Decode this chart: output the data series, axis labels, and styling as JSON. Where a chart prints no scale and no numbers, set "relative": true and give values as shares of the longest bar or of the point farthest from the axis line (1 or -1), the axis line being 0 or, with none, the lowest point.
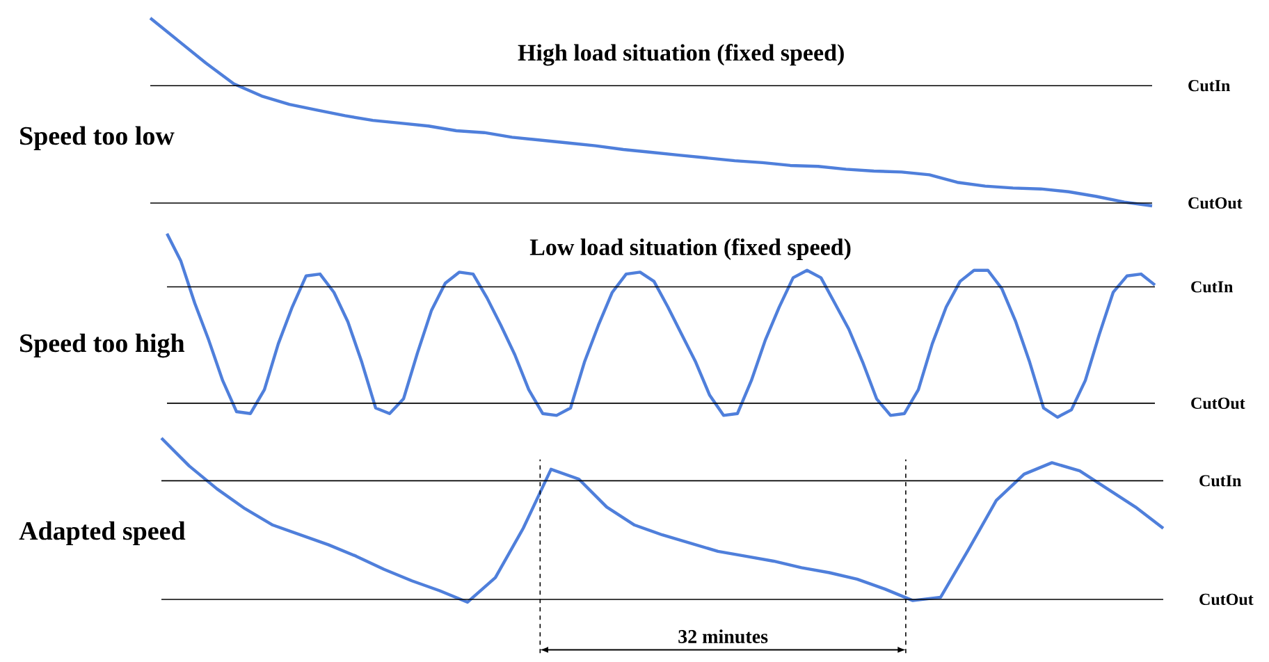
{
  "chart_data": [
    {
      "type": "line",
      "relative": true,
      "title": "High load situation (fixed speed)",
      "ylabel": "Speed too low",
      "categories": [
        null,
        null,
        null,
        null,
        null,
        null,
        null,
        null,
        null,
        null,
        null,
        null,
        null,
        null,
        null,
        null,
        null,
        null,
        null,
        null,
        null,
        null,
        null,
        null,
        null,
        null,
        null,
        null,
        null,
        null,
        null,
        null,
        null,
        null,
        null,
        null,
        null
      ],
      "series": [
        {
          "color": "#4f7fdb",
          "values": [
            1.0,
            0.88,
            0.76,
            0.65,
            0.585,
            0.54,
            0.51,
            0.48,
            0.455,
            0.44,
            0.425,
            0.4,
            0.39,
            0.365,
            0.35,
            0.335,
            0.32,
            0.3,
            0.285,
            0.27,
            0.255,
            0.24,
            0.23,
            0.215,
            0.21,
            0.195,
            0.185,
            0.18,
            0.165,
            0.125,
            0.105,
            0.095,
            0.09,
            0.075,
            0.05,
            0.02,
            0.0
          ]
        }
      ],
      "ref_lines": [
        {
          "axis": "y",
          "value": 0.64,
          "label": "CutIn"
        },
        {
          "axis": "y",
          "value": 0.015,
          "label": "CutOut"
        }
      ]
    },
    {
      "type": "line",
      "relative": true,
      "title": "Low load situation (fixed speed)",
      "ylabel": "Speed too high",
      "categories": [
        null,
        null,
        null,
        null,
        null,
        null,
        null,
        null,
        null,
        null,
        null,
        null,
        null,
        null,
        null,
        null,
        null,
        null,
        null,
        null,
        null,
        null,
        null,
        null,
        null,
        null,
        null,
        null,
        null,
        null,
        null,
        null,
        null,
        null,
        null,
        null,
        null,
        null,
        null,
        null,
        null,
        null,
        null,
        null,
        null,
        null,
        null,
        null,
        null,
        null,
        null,
        null,
        null,
        null,
        null,
        null,
        null,
        null,
        null,
        null,
        null,
        null,
        null,
        null,
        null,
        null,
        null,
        null,
        null,
        null,
        null,
        null
      ],
      "series": [
        {
          "color": "#4f7fdb",
          "values": [
            1.0,
            0.85,
            0.62,
            0.42,
            0.2,
            0.03,
            0.02,
            0.15,
            0.4,
            0.6,
            0.77,
            0.78,
            0.68,
            0.52,
            0.3,
            0.05,
            0.02,
            0.1,
            0.35,
            0.58,
            0.73,
            0.79,
            0.78,
            0.65,
            0.5,
            0.34,
            0.15,
            0.02,
            0.01,
            0.05,
            0.3,
            0.5,
            0.68,
            0.78,
            0.79,
            0.74,
            0.6,
            0.45,
            0.3,
            0.12,
            0.01,
            0.02,
            0.2,
            0.42,
            0.6,
            0.76,
            0.8,
            0.76,
            0.62,
            0.48,
            0.3,
            0.1,
            0.01,
            0.02,
            0.15,
            0.4,
            0.6,
            0.74,
            0.8,
            0.8,
            0.7,
            0.52,
            0.3,
            0.05,
            0.0,
            0.04,
            0.2,
            0.45,
            0.68,
            0.77,
            0.78,
            0.72
          ]
        }
      ],
      "ref_lines": [
        {
          "axis": "y",
          "value": 0.71,
          "label": "CutIn"
        },
        {
          "axis": "y",
          "value": 0.076,
          "label": "CutOut"
        }
      ]
    },
    {
      "type": "line",
      "relative": true,
      "ylabel": "Adapted speed",
      "annotations": [
        "32 minutes"
      ],
      "categories": [
        null,
        null,
        null,
        null,
        null,
        null,
        null,
        null,
        null,
        null,
        null,
        null,
        null,
        null,
        null,
        null,
        null,
        null,
        null,
        null,
        null,
        null,
        null,
        null,
        null,
        null,
        null,
        null,
        null,
        null,
        null,
        null,
        null,
        null,
        null,
        null,
        null
      ],
      "series": [
        {
          "color": "#4f7fdb",
          "values": [
            1.0,
            0.83,
            0.69,
            0.57,
            0.47,
            0.41,
            0.35,
            0.28,
            0.2,
            0.13,
            0.07,
            0.0,
            0.15,
            0.45,
            0.81,
            0.75,
            0.58,
            0.47,
            0.41,
            0.36,
            0.31,
            0.28,
            0.25,
            0.21,
            0.18,
            0.14,
            0.08,
            0.01,
            0.03,
            0.32,
            0.62,
            0.78,
            0.85,
            0.8,
            0.69,
            0.58,
            0.45
          ]
        }
      ],
      "ref_lines": [
        {
          "axis": "y",
          "value": 0.74,
          "label": "CutIn"
        },
        {
          "axis": "y",
          "value": 0.017,
          "label": "CutOut"
        }
      ]
    }
  ]
}
